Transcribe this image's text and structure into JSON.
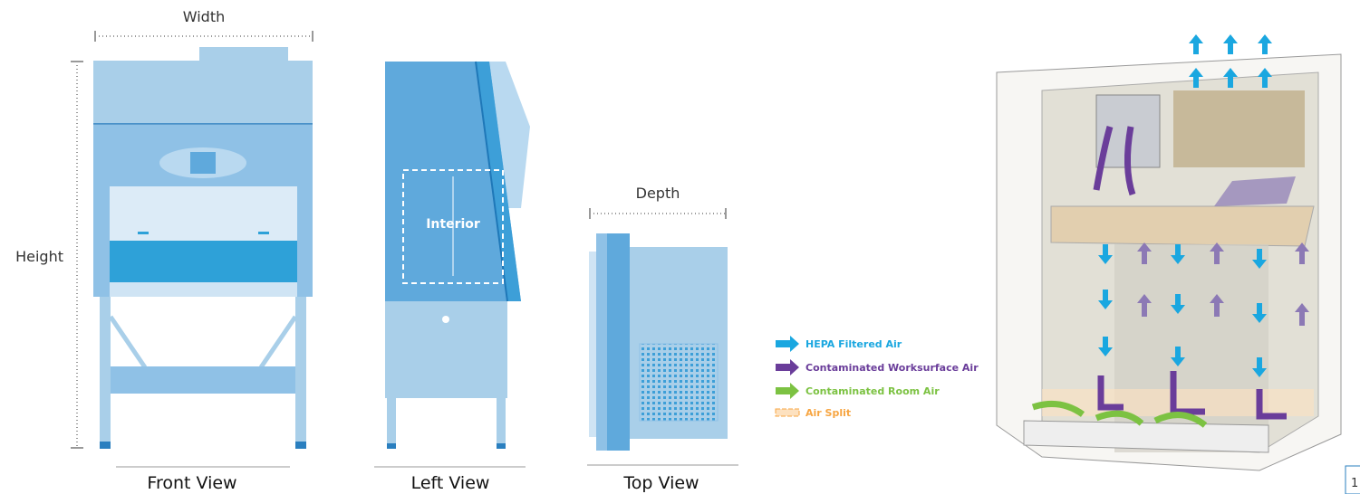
{
  "dimensions": {
    "width": "Width",
    "height": "Height",
    "depth": "Depth"
  },
  "views": [
    {
      "label": "Front View"
    },
    {
      "label": "Left View"
    },
    {
      "label": "Top View"
    }
  ],
  "interior_label": "Interior",
  "legend": [
    {
      "label": "HEPA Filtered Air"
    },
    {
      "label": "Contaminated Worksurface Air"
    },
    {
      "label": "Contaminated Room Air"
    },
    {
      "label": "Air Split"
    }
  ],
  "page_number": "1"
}
